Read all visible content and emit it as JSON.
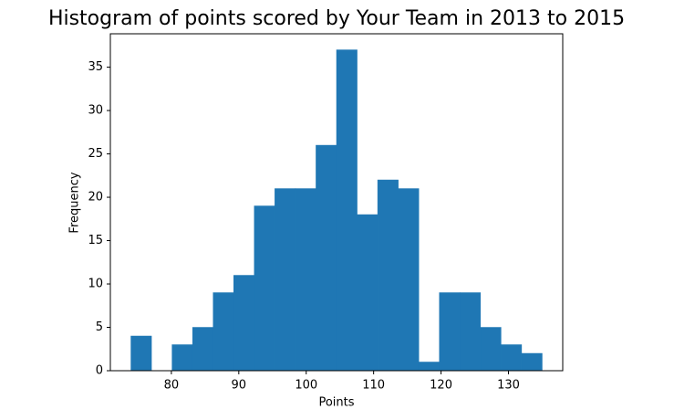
{
  "chart_data": {
    "type": "histogram",
    "title": "Histogram of points scored by Your Team in 2013 to 2015",
    "x_label": "Points",
    "y_label": "Frequency",
    "bins": [
      74,
      77.05,
      80.1,
      83.15,
      86.2,
      89.25,
      92.3,
      95.35,
      98.4,
      101.45,
      104.5,
      107.55,
      110.6,
      113.65,
      116.7,
      119.75,
      122.8,
      125.85,
      128.9,
      131.95,
      135
    ],
    "values": [
      4,
      0,
      3,
      5,
      9,
      11,
      19,
      21,
      21,
      26,
      37,
      18,
      22,
      21,
      1,
      9,
      9,
      5,
      3,
      2
    ],
    "color": "#1f77b4",
    "xlim": [
      70.95,
      138.05
    ],
    "xticks": [
      80,
      90,
      100,
      110,
      120,
      130
    ],
    "ylim": [
      0,
      38.85
    ],
    "yticks": [
      0,
      5,
      10,
      15,
      20,
      25,
      30,
      35
    ]
  }
}
